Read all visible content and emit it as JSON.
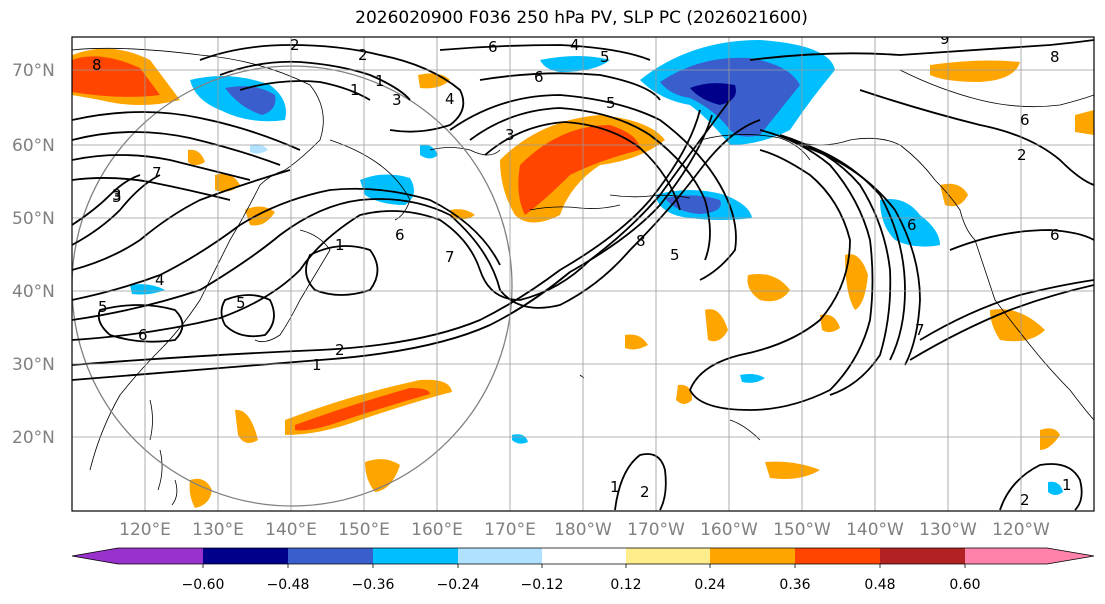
{
  "title": "2026020900 F036 250 hPa PV, SLP PC (2026021600)",
  "lat_labels": [
    "70°N",
    "60°N",
    "50°N",
    "40°N",
    "30°N",
    "20°N"
  ],
  "lon_labels": [
    "120°E",
    "130°E",
    "140°E",
    "150°E",
    "160°E",
    "170°E",
    "180°W",
    "170°W",
    "160°W",
    "150°W",
    "140°W",
    "130°W",
    "120°W"
  ],
  "colorbar": {
    "tick_labels": [
      "−0.60",
      "−0.48",
      "−0.36",
      "−0.24",
      "−0.12",
      "0.12",
      "0.24",
      "0.36",
      "0.48",
      "0.60"
    ],
    "colors": [
      "#9932cc",
      "#00008b",
      "#3a5fcd",
      "#00bfff",
      "#b0e2ff",
      "#ffffff",
      "#ffec8b",
      "#ffa500",
      "#ff4500",
      "#b22222",
      "#ff82ab"
    ]
  },
  "contour_labels": [
    "1",
    "2",
    "3",
    "4",
    "5",
    "6",
    "7",
    "8",
    "1",
    "1",
    "2",
    "3",
    "4",
    "5",
    "5",
    "6",
    "6",
    "7",
    "8",
    "9",
    "1",
    "2",
    "6",
    "2",
    "1",
    "1",
    "2",
    "6",
    "5",
    "6",
    "4",
    "5",
    "3",
    "6",
    "7",
    "8",
    "3",
    "2"
  ],
  "colors": {
    "pv_positive": "#ffa500",
    "pv_strong": "#ff4500",
    "pv_negative": "#00bfff",
    "pv_neg_strong": "#3a5fcd"
  }
}
